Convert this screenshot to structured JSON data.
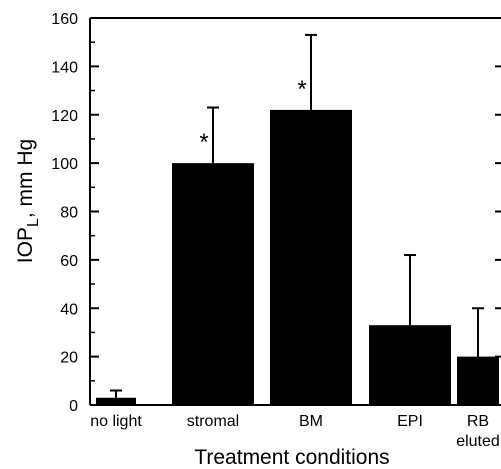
{
  "chart_data": {
    "type": "bar",
    "categories": [
      [
        "no light"
      ],
      [
        "stromal"
      ],
      [
        "BM"
      ],
      [
        "EPI"
      ],
      [
        "RB",
        "eluted"
      ]
    ],
    "values": [
      3,
      100,
      122,
      33,
      20
    ],
    "error_plus": [
      3,
      23,
      31,
      29,
      20
    ],
    "significance_markers": [
      "",
      "*",
      "*",
      "",
      ""
    ],
    "ylabel_main": "IOP",
    "ylabel_sub": "L",
    "ylabel_suffix": ", mm Hg",
    "xlabel": "Treatment conditions",
    "ylim": [
      0,
      160
    ],
    "yticks": [
      0,
      20,
      40,
      60,
      80,
      100,
      120,
      140,
      160
    ],
    "grid": false,
    "colors": {
      "bar": "#000000",
      "axis": "#000000",
      "background": "#ffffff"
    }
  }
}
